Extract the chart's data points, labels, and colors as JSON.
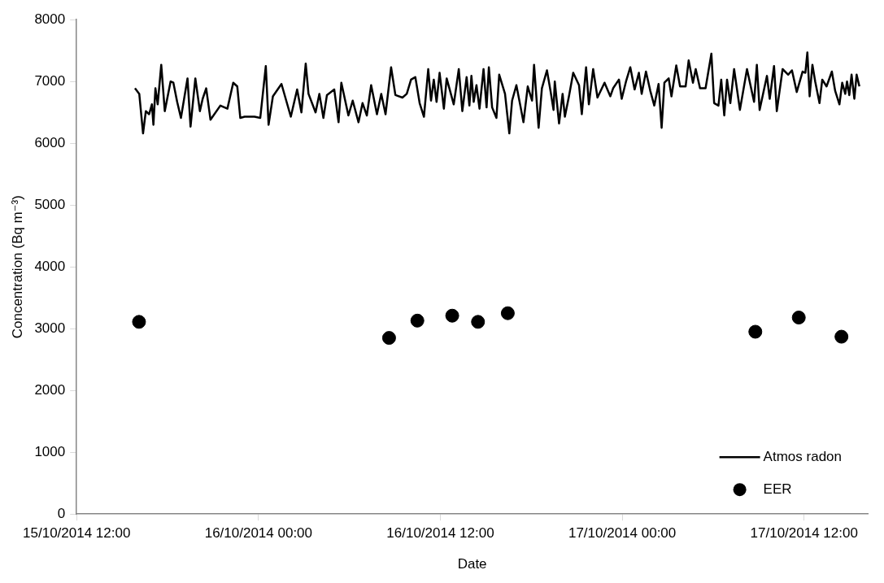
{
  "chart_data": {
    "type": "line",
    "xlabel": "Date",
    "ylabel": "Concentration (Bq m⁻³)",
    "xlim": [
      "2014-10-15T12:00",
      "2014-10-17T16:12"
    ],
    "xticks": [
      {
        "value": "2014-10-15T12:00",
        "label": "15/10/2014 12:00"
      },
      {
        "value": "2014-10-16T00:00",
        "label": "16/10/2014 00:00"
      },
      {
        "value": "2014-10-16T12:00",
        "label": "16/10/2014 12:00"
      },
      {
        "value": "2014-10-17T00:00",
        "label": "17/10/2014 00:00"
      },
      {
        "value": "2014-10-17T12:00",
        "label": "17/10/2014 12:00"
      }
    ],
    "ylim": [
      0,
      8000
    ],
    "yticks": [
      0,
      1000,
      2000,
      3000,
      4000,
      5000,
      6000,
      7000,
      8000
    ],
    "grid": false,
    "legend": "bottom right",
    "series": [
      {
        "name": "Atmos radon",
        "color": "#000000",
        "marker": "none",
        "line_style": "solid",
        "x": [
          "2014-10-15T15:51",
          "2014-10-15T16:08",
          "2014-10-15T16:23",
          "2014-10-15T16:34",
          "2014-10-15T16:47",
          "2014-10-15T16:58",
          "2014-10-15T17:04",
          "2014-10-15T17:12",
          "2014-10-15T17:21",
          "2014-10-15T17:35",
          "2014-10-15T17:49",
          "2014-10-15T18:12",
          "2014-10-15T18:23",
          "2014-10-15T18:38",
          "2014-10-15T18:53",
          "2014-10-15T19:19",
          "2014-10-15T19:31",
          "2014-10-15T19:50",
          "2014-10-15T20:08",
          "2014-10-15T20:19",
          "2014-10-15T20:33",
          "2014-10-15T20:50",
          "2014-10-15T21:29",
          "2014-10-15T21:57",
          "2014-10-15T22:20",
          "2014-10-15T22:36",
          "2014-10-15T22:48",
          "2014-10-15T23:05",
          "2014-10-15T23:44",
          "2014-10-16T00:07",
          "2014-10-16T00:29",
          "2014-10-16T00:40",
          "2014-10-16T00:57",
          "2014-10-16T01:31",
          "2014-10-16T02:08",
          "2014-10-16T02:33",
          "2014-10-16T02:50",
          "2014-10-16T03:07",
          "2014-10-16T03:18",
          "2014-10-16T03:46",
          "2014-10-16T04:01",
          "2014-10-16T04:17",
          "2014-10-16T04:31",
          "2014-10-16T05:00",
          "2014-10-16T05:17",
          "2014-10-16T05:28",
          "2014-10-16T05:56",
          "2014-10-16T06:13",
          "2014-10-16T06:36",
          "2014-10-16T06:52",
          "2014-10-16T07:09",
          "2014-10-16T07:26",
          "2014-10-16T07:49",
          "2014-10-16T08:06",
          "2014-10-16T08:23",
          "2014-10-16T08:45",
          "2014-10-16T09:02",
          "2014-10-16T09:30",
          "2014-10-16T09:47",
          "2014-10-16T10:04",
          "2014-10-16T10:21",
          "2014-10-16T10:38",
          "2014-10-16T10:55",
          "2014-10-16T11:12",
          "2014-10-16T11:23",
          "2014-10-16T11:34",
          "2014-10-16T11:45",
          "2014-10-16T11:57",
          "2014-10-16T12:14",
          "2014-10-16T12:25",
          "2014-10-16T12:53",
          "2014-10-16T13:13",
          "2014-10-16T13:27",
          "2014-10-16T13:44",
          "2014-10-16T13:55",
          "2014-10-16T14:03",
          "2014-10-16T14:12",
          "2014-10-16T14:23",
          "2014-10-16T14:35",
          "2014-10-16T14:51",
          "2014-10-16T15:03",
          "2014-10-16T15:12",
          "2014-10-16T15:25",
          "2014-10-16T15:42",
          "2014-10-16T15:53",
          "2014-10-16T16:16",
          "2014-10-16T16:33",
          "2014-10-16T16:44",
          "2014-10-16T17:01",
          "2014-10-16T17:18",
          "2014-10-16T17:29",
          "2014-10-16T17:46",
          "2014-10-16T18:03",
          "2014-10-16T18:11",
          "2014-10-16T18:29",
          "2014-10-16T18:42",
          "2014-10-16T19:02",
          "2014-10-16T19:16",
          "2014-10-16T19:28",
          "2014-10-16T19:33",
          "2014-10-16T19:50",
          "2014-10-16T20:04",
          "2014-10-16T20:13",
          "2014-10-16T20:30",
          "2014-10-16T20:46",
          "2014-10-16T21:09",
          "2014-10-16T21:20",
          "2014-10-16T21:37",
          "2014-10-16T21:48",
          "2014-10-16T22:05",
          "2014-10-16T22:22",
          "2014-10-16T22:50",
          "2014-10-16T23:13",
          "2014-10-16T23:24",
          "2014-10-16T23:47",
          "2014-10-16T23:58",
          "2014-10-17T00:15",
          "2014-10-17T00:32",
          "2014-10-17T00:49",
          "2014-10-17T01:06",
          "2014-10-17T01:17",
          "2014-10-17T01:34",
          "2014-10-17T01:51",
          "2014-10-17T02:07",
          "2014-10-17T02:24",
          "2014-10-17T02:36",
          "2014-10-17T02:47",
          "2014-10-17T03:04",
          "2014-10-17T03:15",
          "2014-10-17T03:34",
          "2014-10-17T03:49",
          "2014-10-17T04:11",
          "2014-10-17T04:23",
          "2014-10-17T04:40",
          "2014-10-17T04:51",
          "2014-10-17T05:08",
          "2014-10-17T05:30",
          "2014-10-17T05:53",
          "2014-10-17T06:04",
          "2014-10-17T06:21",
          "2014-10-17T06:32",
          "2014-10-17T06:44",
          "2014-10-17T06:55",
          "2014-10-17T07:08",
          "2014-10-17T07:23",
          "2014-10-17T07:46",
          "2014-10-17T08:14",
          "2014-10-17T08:42",
          "2014-10-17T08:53",
          "2014-10-17T09:04",
          "2014-10-17T09:33",
          "2014-10-17T09:44",
          "2014-10-17T10:01",
          "2014-10-17T10:12",
          "2014-10-17T10:35",
          "2014-10-17T10:57",
          "2014-10-17T11:12",
          "2014-10-17T11:31",
          "2014-10-17T11:54",
          "2014-10-17T12:05",
          "2014-10-17T12:13",
          "2014-10-17T12:22",
          "2014-10-17T12:33",
          "2014-10-17T12:44",
          "2014-10-17T13:01",
          "2014-10-17T13:12",
          "2014-10-17T13:29",
          "2014-10-17T13:50",
          "2014-10-17T14:03",
          "2014-10-17T14:20",
          "2014-10-17T14:31",
          "2014-10-17T14:43",
          "2014-10-17T14:50",
          "2014-10-17T14:59",
          "2014-10-17T15:08",
          "2014-10-17T15:19",
          "2014-10-17T15:28",
          "2014-10-17T15:39"
        ],
        "values": [
          6890,
          6800,
          6160,
          6520,
          6470,
          6630,
          6300,
          6890,
          6630,
          7270,
          6520,
          7000,
          6980,
          6670,
          6410,
          7050,
          6270,
          7050,
          6520,
          6720,
          6890,
          6380,
          6610,
          6560,
          6980,
          6920,
          6410,
          6430,
          6430,
          6410,
          7250,
          6300,
          6760,
          6960,
          6430,
          6870,
          6500,
          7290,
          6800,
          6500,
          6800,
          6410,
          6780,
          6870,
          6340,
          6980,
          6450,
          6690,
          6340,
          6650,
          6450,
          6940,
          6470,
          6800,
          6470,
          7230,
          6780,
          6740,
          6800,
          7030,
          7070,
          6650,
          6430,
          7200,
          6690,
          7030,
          6670,
          7140,
          6560,
          7050,
          6630,
          7200,
          6520,
          7070,
          6610,
          7090,
          6670,
          6940,
          6560,
          7200,
          6580,
          7230,
          6580,
          6410,
          7110,
          6800,
          6160,
          6690,
          6940,
          6580,
          6340,
          6920,
          6690,
          7270,
          6250,
          6890,
          7180,
          6850,
          6540,
          7000,
          6320,
          6800,
          6430,
          6780,
          7140,
          6940,
          6470,
          7230,
          6630,
          7200,
          6740,
          6980,
          6760,
          6890,
          7030,
          6720,
          7000,
          7230,
          6870,
          7140,
          6800,
          7160,
          6850,
          6610,
          6960,
          6250,
          6980,
          7050,
          6760,
          7260,
          6920,
          6920,
          7340,
          6980,
          7200,
          6890,
          6890,
          7450,
          6650,
          6610,
          7030,
          6450,
          7030,
          6650,
          7200,
          6540,
          7200,
          6670,
          7270,
          6540,
          7090,
          6720,
          7250,
          6520,
          7200,
          7110,
          7180,
          6830,
          7160,
          7140,
          7470,
          6760,
          7270,
          7000,
          6650,
          7030,
          6920,
          7160,
          6850,
          6630,
          6980,
          6800,
          7000,
          6780,
          7110,
          6720,
          7110,
          6920
        ]
      },
      {
        "name": "EER",
        "type": "scatter",
        "color": "#000000",
        "marker": "circle",
        "x": [
          "2014-10-15T16:07",
          "2014-10-16T08:37",
          "2014-10-16T10:29",
          "2014-10-16T12:47",
          "2014-10-16T14:29",
          "2014-10-16T16:27",
          "2014-10-17T08:47",
          "2014-10-17T11:39",
          "2014-10-17T14:28"
        ],
        "values": [
          3110,
          2850,
          3130,
          3210,
          3110,
          3250,
          2950,
          3180,
          2870
        ]
      }
    ]
  }
}
